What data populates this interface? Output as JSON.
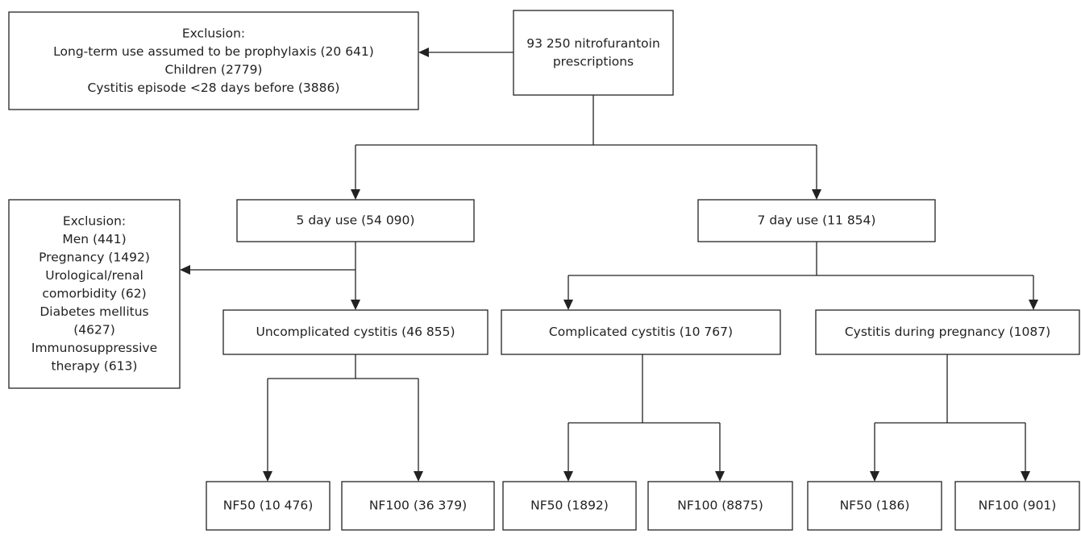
{
  "nodes": [
    {
      "lines": [
        "93 250 nitrofurantoin",
        "prescriptions"
      ]
    },
    {
      "lines": [
        "Exclusion:",
        "Long-term use assumed to be prophylaxis (20 641)",
        "Children (2779)",
        "Cystitis episode <28 days before (3886)"
      ]
    },
    {
      "lines": [
        "5 day use (54 090)"
      ]
    },
    {
      "lines": [
        "7 day use (11 854)"
      ]
    },
    {
      "lines": [
        "Exclusion:",
        "Men (441)",
        "Pregnancy (1492)",
        "Urological/renal",
        "comorbidity (62)",
        "Diabetes mellitus",
        "(4627)",
        "Immunosuppressive",
        "therapy (613)"
      ]
    },
    {
      "lines": [
        "Uncomplicated cystitis (46 855)"
      ]
    },
    {
      "lines": [
        "Complicated cystitis (10 767)"
      ]
    },
    {
      "lines": [
        "Cystitis during pregnancy (1087)"
      ]
    },
    {
      "lines": [
        "NF50 (10 476)"
      ]
    },
    {
      "lines": [
        "NF100 (36 379)"
      ]
    },
    {
      "lines": [
        "NF50 (1892)"
      ]
    },
    {
      "lines": [
        "NF100 (8875)"
      ]
    },
    {
      "lines": [
        "NF50 (186)"
      ]
    },
    {
      "lines": [
        "NF100 (901)"
      ]
    }
  ]
}
